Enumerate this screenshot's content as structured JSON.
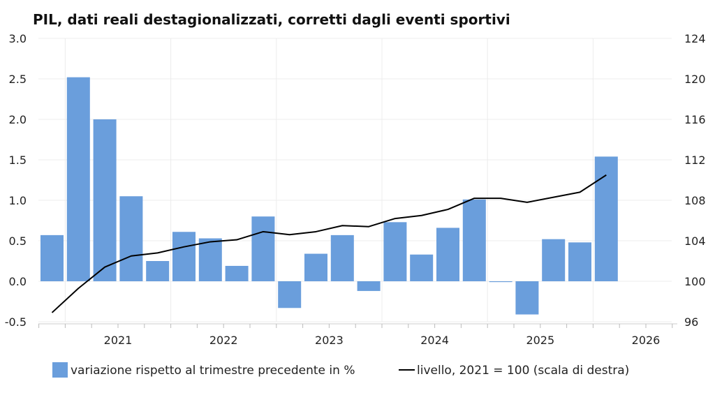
{
  "chart_data": {
    "type": "bar",
    "title": "PIL, dati reali destagionalizzati, corretti dagli eventi sportivi",
    "x_tick_labels": [
      "2021",
      "2022",
      "2023",
      "2024",
      "2025",
      "2026"
    ],
    "quarters": [
      "2020-Q4",
      "2021-Q1",
      "2021-Q2",
      "2021-Q3",
      "2021-Q4",
      "2022-Q1",
      "2022-Q2",
      "2022-Q3",
      "2022-Q4",
      "2023-Q1",
      "2023-Q2",
      "2023-Q3",
      "2023-Q4",
      "2024-Q1",
      "2024-Q2",
      "2024-Q3",
      "2024-Q4",
      "2025-Q1",
      "2025-Q2",
      "2025-Q3",
      "2025-Q4",
      "2026-Q1",
      "2026-Q2",
      "2026-Q3",
      "2026-Q4"
    ],
    "series": [
      {
        "name": "variazione rispetto al trimestre precedente in %",
        "type": "bar",
        "axis": "left",
        "color": "#6a9edc",
        "values": [
          0.57,
          2.52,
          2.0,
          1.05,
          0.25,
          0.61,
          0.53,
          0.19,
          0.8,
          -0.33,
          0.34,
          0.57,
          -0.12,
          0.73,
          0.33,
          0.66,
          1.01,
          -0.01,
          -0.41,
          0.52,
          0.48,
          1.54,
          null,
          null,
          null
        ]
      },
      {
        "name": "livello, 2021 = 100 (scala di destra)",
        "type": "line",
        "axis": "right",
        "color": "#000000",
        "values": [
          96.9,
          99.3,
          101.4,
          102.5,
          102.8,
          103.4,
          103.9,
          104.1,
          104.9,
          104.6,
          104.9,
          105.5,
          105.4,
          106.2,
          106.5,
          107.1,
          108.2,
          108.2,
          107.8,
          108.3,
          108.8,
          110.5,
          null,
          null,
          null
        ]
      }
    ],
    "y_left": {
      "min": -0.5,
      "max": 3.0,
      "ticks": [
        "3.0",
        "2.5",
        "2.0",
        "1.5",
        "1.0",
        "0.5",
        "0.0",
        "-0.5"
      ]
    },
    "y_right": {
      "min": 96,
      "max": 124,
      "ticks": [
        "124",
        "120",
        "116",
        "112",
        "108",
        "104",
        "100",
        "96"
      ]
    },
    "grid": true,
    "legend_position": "bottom"
  }
}
